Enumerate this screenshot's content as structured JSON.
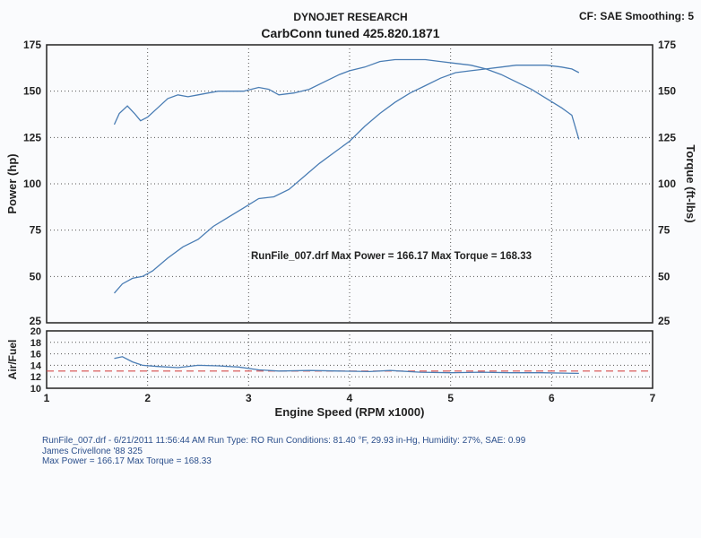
{
  "header": {
    "company": "DYNOJET RESEARCH",
    "subtitle": "CarbConn tuned  425.820.1871",
    "settings": "CF: SAE  Smoothing: 5"
  },
  "colors": {
    "curve": "#4a7db4",
    "target": "#d64a4a",
    "frame": "#222222",
    "grid": "#555555"
  },
  "footer": {
    "line1": "RunFile_007.drf - 6/21/2011 11:56:44 AM  Run Type: RO  Run Conditions: 81.40 °F, 29.93 in-Hg,  Humidity:  27%, SAE: 0.99",
    "line2": "James Crivellone '88 325",
    "line3": "Max Power = 166.17  Max Torque = 168.33"
  },
  "chart_data": [
    {
      "type": "line",
      "annotation": "RunFile_007.drf Max Power = 166.17     Max Torque = 168.33",
      "xlabel": "Engine Speed (RPM x1000)",
      "ylabel": "Power (hp)",
      "y2label": "Torque (ft-lbs)",
      "xlim": [
        1,
        7
      ],
      "ylim": [
        25,
        175
      ],
      "y2lim": [
        25,
        175
      ],
      "x_ticks": [
        "1",
        "2",
        "3",
        "4",
        "5",
        "6",
        "7"
      ],
      "y_ticks": [
        "25",
        "50",
        "75",
        "100",
        "125",
        "150",
        "175"
      ],
      "y2_ticks": [
        "25",
        "50",
        "75",
        "100",
        "125",
        "150",
        "175"
      ],
      "grid": "dotted",
      "series": [
        {
          "axis": "left",
          "x": [
            1.67,
            1.75,
            1.85,
            1.95,
            2.05,
            2.2,
            2.35,
            2.5,
            2.65,
            2.8,
            2.95,
            3.1,
            3.25,
            3.4,
            3.55,
            3.7,
            3.85,
            4.0,
            4.15,
            4.3,
            4.45,
            4.6,
            4.75,
            4.9,
            5.05,
            5.2,
            5.35,
            5.5,
            5.65,
            5.8,
            5.95,
            6.1,
            6.2,
            6.27
          ],
          "values": [
            41,
            46,
            49,
            50,
            53,
            60,
            66,
            70,
            77,
            82,
            87,
            92,
            93,
            97,
            104,
            111,
            117,
            123,
            131,
            138,
            144,
            149,
            153,
            157,
            160,
            161,
            162,
            163,
            164,
            164,
            164,
            163,
            162,
            160
          ]
        },
        {
          "axis": "right",
          "x": [
            1.67,
            1.72,
            1.8,
            1.87,
            1.93,
            2.0,
            2.1,
            2.2,
            2.3,
            2.4,
            2.5,
            2.6,
            2.7,
            2.8,
            2.95,
            3.1,
            3.2,
            3.3,
            3.45,
            3.6,
            3.75,
            3.9,
            4.0,
            4.15,
            4.3,
            4.45,
            4.6,
            4.75,
            4.9,
            5.05,
            5.2,
            5.35,
            5.5,
            5.65,
            5.8,
            5.95,
            6.1,
            6.2,
            6.27
          ],
          "values": [
            132,
            138,
            142,
            138,
            134,
            136,
            141,
            146,
            148,
            147,
            148,
            149,
            150,
            150,
            150,
            152,
            151,
            148,
            149,
            151,
            155,
            159,
            161,
            163,
            166,
            167,
            167,
            167,
            166,
            165,
            164,
            162,
            159,
            155,
            151,
            146,
            141,
            137,
            124
          ]
        }
      ]
    },
    {
      "type": "line",
      "ylabel": "Air/Fuel",
      "xlim": [
        1,
        7
      ],
      "ylim": [
        10,
        20
      ],
      "y_ticks": [
        "10",
        "12",
        "14",
        "16",
        "18",
        "20"
      ],
      "target": 13,
      "series": [
        {
          "x": [
            1.67,
            1.75,
            1.85,
            1.95,
            2.1,
            2.3,
            2.5,
            2.7,
            2.9,
            3.1,
            3.3,
            3.6,
            3.9,
            4.2,
            4.4,
            4.7,
            5.0,
            5.3,
            5.6,
            5.9,
            6.27
          ],
          "values": [
            15.2,
            15.5,
            14.6,
            14.0,
            13.8,
            13.6,
            14.0,
            13.9,
            13.7,
            13.2,
            13.0,
            13.1,
            13.0,
            12.9,
            13.1,
            12.8,
            12.7,
            12.8,
            12.7,
            12.7,
            12.6
          ]
        }
      ]
    }
  ]
}
